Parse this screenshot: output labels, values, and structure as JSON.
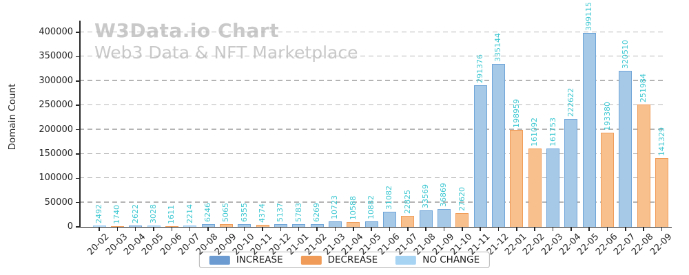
{
  "watermark": {
    "title": "W3Data.io Chart",
    "subtitle": "Web3 Data & NFT Marketplace"
  },
  "legend_items": [
    {
      "label": "INCREASE",
      "type": "increase"
    },
    {
      "label": "DECREASE",
      "type": "decrease"
    },
    {
      "label": "NO CHANGE",
      "type": "no_change"
    }
  ],
  "chart_data": {
    "type": "bar",
    "title": "W3Data.io Chart",
    "subtitle": "Web3 Data & NFT Marketplace",
    "xlabel": "",
    "ylabel": "Domain Count",
    "categories": [
      "20-02",
      "20-03",
      "20-04",
      "20-05",
      "20-06",
      "20-07",
      "20-08",
      "20-09",
      "20-10",
      "20-11",
      "20-12",
      "21-01",
      "21-02",
      "21-03",
      "21-04",
      "21-05",
      "21-06",
      "21-07",
      "21-08",
      "21-09",
      "21-10",
      "21-11",
      "21-12",
      "22-01",
      "22-02",
      "22-03",
      "22-04",
      "22-05",
      "22-06",
      "22-07",
      "22-08",
      "22-09"
    ],
    "values": [
      2492,
      1740,
      2622,
      3028,
      1611,
      2214,
      6246,
      5065,
      6355,
      4374,
      5137,
      5783,
      6269,
      10723,
      10588,
      10882,
      31082,
      22825,
      33569,
      36869,
      27620,
      291376,
      335144,
      198959,
      161092,
      161753,
      222622,
      399115,
      193380,
      320510,
      251984,
      141329
    ],
    "change_type": [
      "no_change",
      "decrease",
      "increase",
      "no_change",
      "decrease",
      "no_change",
      "increase",
      "decrease",
      "increase",
      "decrease",
      "increase",
      "increase",
      "increase",
      "increase",
      "decrease",
      "increase",
      "increase",
      "decrease",
      "increase",
      "increase",
      "decrease",
      "increase",
      "increase",
      "decrease",
      "decrease",
      "increase",
      "increase",
      "increase",
      "decrease",
      "increase",
      "decrease",
      "decrease"
    ],
    "yticks": [
      0,
      50000,
      100000,
      150000,
      200000,
      250000,
      300000,
      350000,
      400000
    ],
    "ylim": [
      0,
      424000
    ],
    "grid": "horizontal dashed",
    "value_labels": "rotated 90, above bars",
    "xtick_rotation": 45,
    "legend_position": "bottom-center",
    "colors": {
      "increase_fill": "#a6c9e8",
      "increase_edge": "#6fa5d8",
      "increase_legend": "#6b9bd0",
      "decrease_fill": "#f7c08d",
      "decrease_edge": "#f09c58",
      "decrease_legend": "#f09c58",
      "no_change_fill": "#bcdcf8",
      "no_change_edge": "#93c9f2",
      "no_change_legend": "#a8d4f4",
      "value_label": "#3fc8d2",
      "watermark": "#c9c9c9",
      "grid": "#b4b4b4",
      "axis": "#262626"
    }
  }
}
